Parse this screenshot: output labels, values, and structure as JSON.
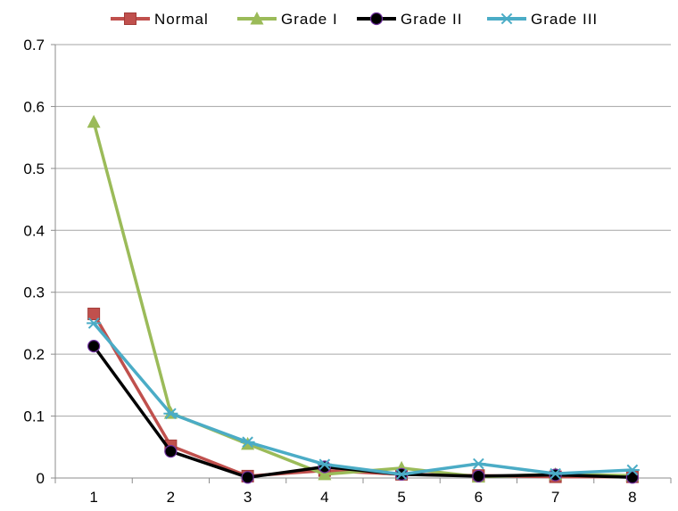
{
  "chart_data": {
    "type": "line",
    "x": [
      1,
      2,
      3,
      4,
      5,
      6,
      7,
      8
    ],
    "x_tick_labels": [
      "1",
      "2",
      "3",
      "4",
      "5",
      "6",
      "7",
      "8"
    ],
    "y_tick_labels": [
      "0",
      "0.1",
      "0.2",
      "0.3",
      "0.4",
      "0.5",
      "0.6",
      "0.7"
    ],
    "ylim": [
      0,
      0.7
    ],
    "grid": "horizontal",
    "legend_position": "top",
    "series": [
      {
        "name": "Normal",
        "color": "#c0504d",
        "marker": "square",
        "values": [
          0.265,
          0.052,
          0.003,
          0.012,
          0.006,
          0.004,
          0.002,
          0.002
        ]
      },
      {
        "name": "Grade I",
        "color": "#9bbb59",
        "marker": "triangle",
        "values": [
          0.575,
          0.105,
          0.055,
          0.006,
          0.016,
          0.002,
          0.006,
          0.004
        ]
      },
      {
        "name": "Grade II",
        "color": "#000000",
        "marker": "circle",
        "values": [
          0.213,
          0.043,
          0.001,
          0.018,
          0.006,
          0.003,
          0.005,
          0.001
        ]
      },
      {
        "name": "Grade III",
        "color": "#4bacc6",
        "marker": "asterisk",
        "values": [
          0.25,
          0.104,
          0.058,
          0.022,
          0.006,
          0.023,
          0.007,
          0.013
        ]
      }
    ]
  }
}
